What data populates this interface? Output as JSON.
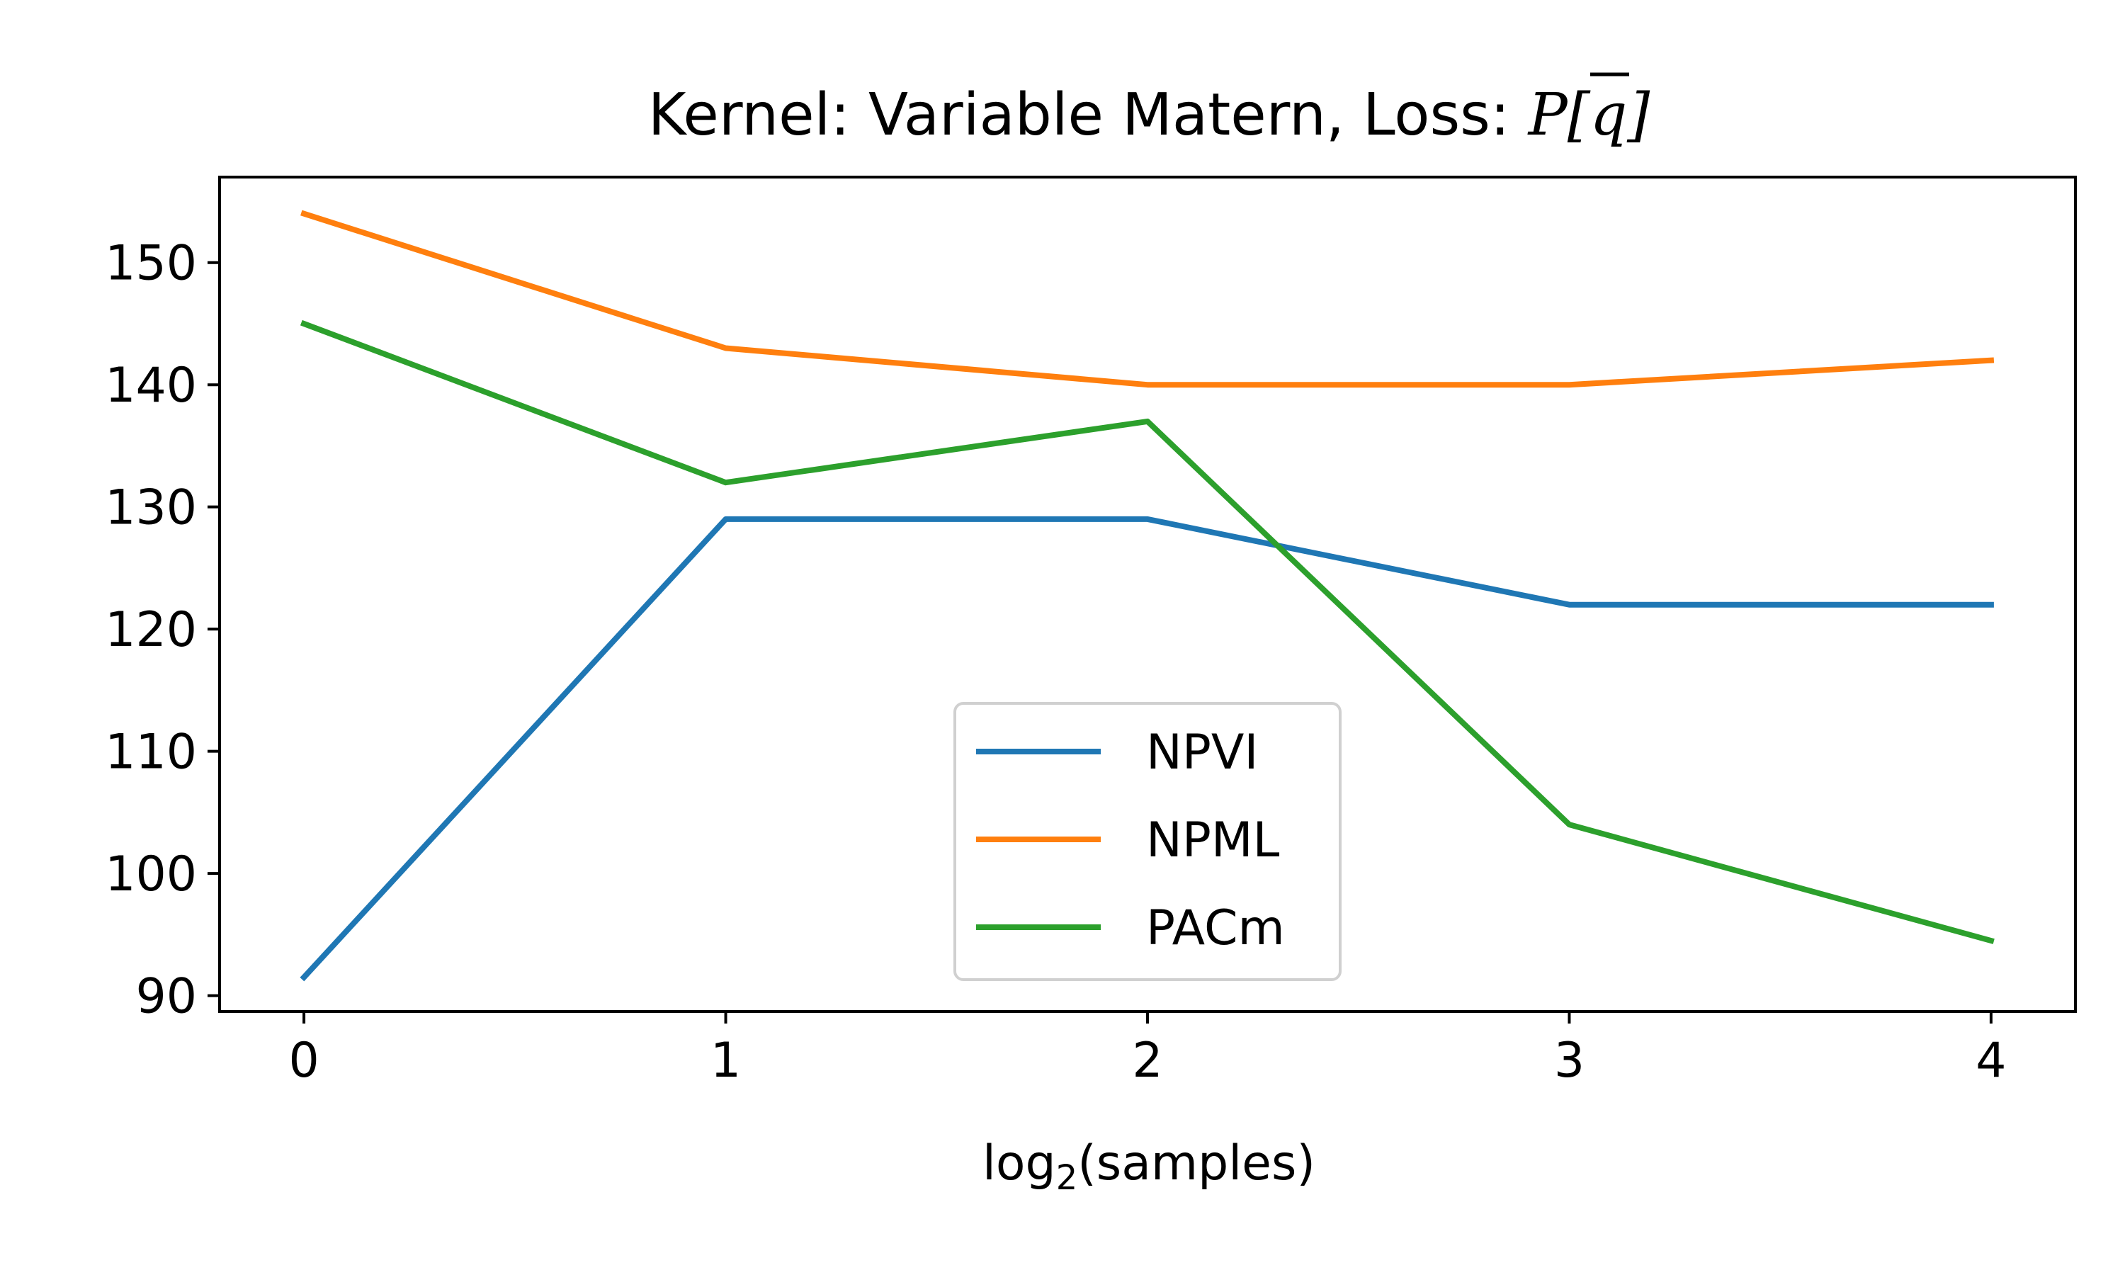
{
  "chart_data": {
    "type": "line",
    "title": {
      "prefix": "Kernel: Variable Matern, Loss: ",
      "symbol": "P",
      "suffix": "[q]"
    },
    "xlabel": {
      "base": "log",
      "subscript": "2",
      "rest": "(samples)"
    },
    "ylabel": "",
    "x": [
      0,
      1,
      2,
      3,
      4
    ],
    "xlim": [
      -0.2,
      4.2
    ],
    "ylim": [
      88.7,
      157
    ],
    "xticks": [
      0,
      1,
      2,
      3,
      4
    ],
    "yticks": [
      90,
      100,
      110,
      120,
      130,
      140,
      150
    ],
    "grid": false,
    "legend_position": "lower-center",
    "series": [
      {
        "name": "NPVI",
        "color": "#1f77b4",
        "values": [
          91.5,
          129,
          129,
          122,
          122
        ]
      },
      {
        "name": "NPML",
        "color": "#ff7f0e",
        "values": [
          154,
          143,
          140,
          140,
          142
        ]
      },
      {
        "name": "PACm",
        "color": "#2ca02c",
        "values": [
          145,
          132,
          137,
          104,
          94.5
        ]
      }
    ]
  }
}
